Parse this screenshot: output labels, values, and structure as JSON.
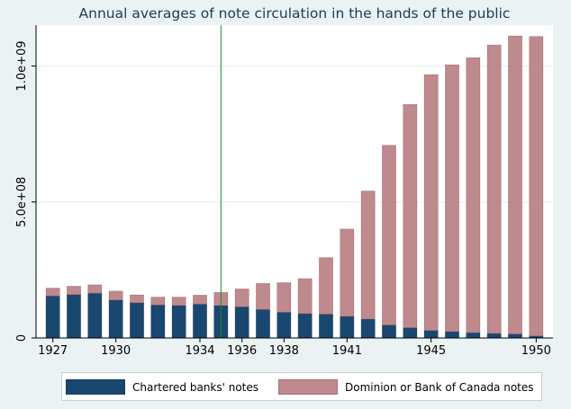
{
  "chart_data": {
    "type": "bar",
    "stacked": true,
    "title": "Annual averages of note circulation in the hands of the public",
    "xlabel": "",
    "ylabel": "",
    "x": [
      1927,
      1928,
      1929,
      1930,
      1931,
      1932,
      1933,
      1934,
      1935,
      1936,
      1937,
      1938,
      1939,
      1940,
      1941,
      1942,
      1943,
      1944,
      1945,
      1946,
      1947,
      1948,
      1949,
      1950
    ],
    "x_tick_labels": [
      "1927",
      "1930",
      "1934",
      "1936",
      "1938",
      "1941",
      "1945",
      "1950"
    ],
    "x_tick_values": [
      1927,
      1930,
      1934,
      1936,
      1938,
      1941,
      1945,
      1950
    ],
    "y_tick_labels": [
      "0",
      "5.0e+08",
      "1.0e+09"
    ],
    "y_tick_values": [
      0,
      500000000,
      1000000000
    ],
    "ylim": [
      0,
      1150000000
    ],
    "xlim": [
      1926.2,
      1950.8
    ],
    "grid": "horizontal",
    "vertical_marker_x": 1935,
    "legend_position": "bottom",
    "series": [
      {
        "name": "Chartered banks' notes",
        "color": "#1a476f",
        "values": [
          155000000,
          160000000,
          165000000,
          140000000,
          130000000,
          122000000,
          120000000,
          125000000,
          120000000,
          115000000,
          105000000,
          95000000,
          90000000,
          88000000,
          80000000,
          70000000,
          48000000,
          38000000,
          28000000,
          24000000,
          20000000,
          17000000,
          15000000,
          8000000
        ]
      },
      {
        "name": "Dominion or Bank of Canada notes",
        "color": "#be8a8e",
        "values": [
          28000000,
          30000000,
          30000000,
          32000000,
          28000000,
          28000000,
          30000000,
          32000000,
          47000000,
          65000000,
          95000000,
          108000000,
          128000000,
          207000000,
          320000000,
          470000000,
          660000000,
          820000000,
          940000000,
          980000000,
          1010000000,
          1060000000,
          1095000000,
          1100000000
        ]
      }
    ]
  },
  "colors": {
    "background": "#eaf2f3",
    "plot_background": "#ffffff",
    "grid": "#e6ecee",
    "marker_line": "#1a8a2c",
    "edge_dark": "#173e60",
    "edge_light": "#a86f74"
  }
}
